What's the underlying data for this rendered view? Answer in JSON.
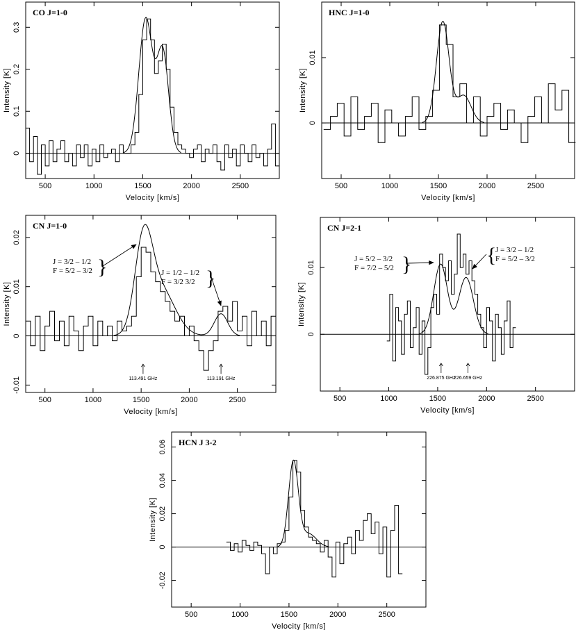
{
  "chart_data": [
    {
      "type": "line",
      "title": "CO J=1-0",
      "xlabel": "Velocity  [km/s]",
      "ylabel": "Intensity [K]",
      "xlim": [
        300,
        2900
      ],
      "ylim": [
        -0.06,
        0.36
      ],
      "xticks": [
        500,
        1000,
        1500,
        2000,
        2500
      ],
      "xtick_labels": [
        "500",
        "1000",
        "1500",
        "2000",
        "2500"
      ],
      "yticks": [
        0,
        0.1,
        0.2,
        0.3
      ],
      "ytick_labels": [
        "0",
        "0.1",
        "0.2",
        "0.3"
      ],
      "series": [
        {
          "style": "histogram",
          "x": [
            300,
            340,
            380,
            420,
            460,
            500,
            540,
            580,
            620,
            660,
            700,
            740,
            780,
            820,
            860,
            900,
            940,
            980,
            1020,
            1060,
            1100,
            1140,
            1180,
            1220,
            1260,
            1300,
            1340,
            1380,
            1420,
            1460,
            1500,
            1540,
            1580,
            1620,
            1660,
            1700,
            1740,
            1780,
            1820,
            1860,
            1900,
            1940,
            1980,
            2020,
            2060,
            2100,
            2140,
            2180,
            2220,
            2260,
            2300,
            2340,
            2380,
            2420,
            2460,
            2500,
            2540,
            2580,
            2620,
            2660,
            2700,
            2740,
            2780,
            2820,
            2860
          ],
          "y": [
            0.06,
            -0.02,
            0.04,
            -0.05,
            0.02,
            -0.03,
            0.03,
            -0.02,
            0.01,
            0.03,
            -0.02,
            0.0,
            -0.03,
            0.02,
            -0.01,
            0.02,
            -0.03,
            0.01,
            -0.02,
            0.02,
            -0.01,
            0.0,
            0.01,
            -0.02,
            0.02,
            0.0,
            0.0,
            0.02,
            0.05,
            0.14,
            0.27,
            0.32,
            0.27,
            0.19,
            0.22,
            0.26,
            0.2,
            0.11,
            0.05,
            0.02,
            0.01,
            0.0,
            -0.01,
            0.01,
            0.02,
            -0.02,
            0.01,
            0.0,
            0.02,
            -0.02,
            -0.04,
            0.02,
            -0.01,
            0.01,
            -0.03,
            0.02,
            0.0,
            -0.02,
            0.02,
            -0.01,
            0.0,
            -0.03,
            0.01,
            0.07,
            -0.03
          ]
        },
        {
          "style": "fit",
          "components": [
            {
              "amp": 0.32,
              "center": 1530,
              "sigma": 70
            },
            {
              "amp": 0.24,
              "center": 1705,
              "sigma": 60
            }
          ]
        }
      ]
    },
    {
      "type": "line",
      "title": "HNC J=1-0",
      "xlabel": "Velocity  [km/s]",
      "ylabel": "Intensity [K]",
      "xlim": [
        300,
        2900
      ],
      "ylim": [
        -0.0085,
        0.0185
      ],
      "xticks": [
        500,
        1000,
        1500,
        2000,
        2500
      ],
      "xtick_labels": [
        "500",
        "1000",
        "1500",
        "2000",
        "2500"
      ],
      "yticks": [
        0,
        0.01
      ],
      "ytick_labels": [
        "0",
        "0.01"
      ],
      "series": [
        {
          "style": "histogram",
          "x": [
            320,
            390,
            460,
            530,
            600,
            670,
            740,
            810,
            880,
            950,
            1020,
            1090,
            1160,
            1230,
            1300,
            1370,
            1440,
            1510,
            1580,
            1650,
            1720,
            1790,
            1860,
            1930,
            2000,
            2070,
            2140,
            2210,
            2280,
            2350,
            2420,
            2490,
            2560,
            2630,
            2700,
            2770,
            2840
          ],
          "y": [
            -0.001,
            0.001,
            0.003,
            -0.002,
            0.004,
            -0.001,
            0.001,
            0.003,
            -0.003,
            0.002,
            0.0,
            -0.002,
            0.001,
            0.004,
            -0.001,
            0.001,
            0.005,
            0.015,
            0.012,
            0.004,
            0.006,
            0.0,
            0.004,
            -0.002,
            0.001,
            0.003,
            -0.001,
            0.002,
            0.0,
            -0.003,
            0.001,
            0.004,
            0.0,
            0.006,
            0.002,
            0.005,
            -0.003
          ]
        },
        {
          "style": "fit",
          "components": [
            {
              "amp": 0.0155,
              "center": 1545,
              "sigma": 65
            },
            {
              "amp": 0.0042,
              "center": 1760,
              "sigma": 75
            }
          ]
        }
      ]
    },
    {
      "type": "line",
      "title": "CN J=1-0",
      "xlabel": "Velocity  [km/s]",
      "ylabel": "Intensity [K]",
      "xlim": [
        300,
        2900
      ],
      "ylim": [
        -0.0115,
        0.0245
      ],
      "xticks": [
        500,
        1000,
        1500,
        2000,
        2500
      ],
      "xtick_labels": [
        "500",
        "1000",
        "1500",
        "2000",
        "2500"
      ],
      "yticks": [
        -0.01,
        0,
        0.01,
        0.02
      ],
      "ytick_labels": [
        "-0.01",
        "0",
        "0.01",
        "0.02"
      ],
      "series": [
        {
          "style": "histogram",
          "x": [
            300,
            350,
            400,
            450,
            500,
            550,
            600,
            650,
            700,
            750,
            800,
            850,
            900,
            950,
            1000,
            1050,
            1100,
            1150,
            1200,
            1250,
            1300,
            1350,
            1400,
            1450,
            1500,
            1550,
            1600,
            1650,
            1700,
            1750,
            1800,
            1850,
            1900,
            1950,
            2000,
            2050,
            2100,
            2150,
            2200,
            2250,
            2300,
            2350,
            2400,
            2450,
            2500,
            2550,
            2600,
            2650,
            2700,
            2750,
            2800,
            2850
          ],
          "y": [
            0.003,
            -0.002,
            0.004,
            -0.003,
            0.002,
            0.005,
            -0.001,
            0.003,
            -0.002,
            0.004,
            0.001,
            -0.003,
            0.002,
            0.004,
            -0.002,
            0.003,
            0.0,
            0.002,
            -0.001,
            0.003,
            0.001,
            0.002,
            0.004,
            0.012,
            0.018,
            0.017,
            0.013,
            0.011,
            0.009,
            0.007,
            0.005,
            0.003,
            0.004,
            0.0,
            0.002,
            -0.001,
            -0.003,
            -0.007,
            -0.003,
            -0.001,
            0.005,
            0.006,
            0.003,
            0.007,
            0.001,
            0.004,
            -0.002,
            0.005,
            0.0,
            0.003,
            -0.002,
            0.004
          ]
        },
        {
          "style": "fit",
          "components": [
            {
              "amp": 0.0175,
              "center": 1525,
              "sigma": 90
            },
            {
              "amp": 0.0095,
              "center": 1700,
              "sigma": 150
            },
            {
              "amp": 0.0045,
              "center": 2330,
              "sigma": 70
            }
          ]
        }
      ],
      "annotations": [
        {
          "line1": "J = 3/2 – 1/2",
          "line2": "F = 5/2 – 3/2"
        },
        {
          "line1": "J = 1/2 – 1/2",
          "line2": "F = 3/2   3/2"
        }
      ],
      "markers": [
        {
          "x": 1520,
          "label": "113.491 GHz"
        },
        {
          "x": 2330,
          "label": "113.191 GHz"
        }
      ]
    },
    {
      "type": "line",
      "title": "CN J=2-1",
      "xlabel": "Velocity  [km/s]",
      "ylabel": "Intensity [K]",
      "xlim": [
        300,
        2900
      ],
      "ylim": [
        -0.0085,
        0.0175
      ],
      "xticks": [
        500,
        1000,
        1500,
        2000,
        2500
      ],
      "xtick_labels": [
        "500",
        "1000",
        "1500",
        "2000",
        "2500"
      ],
      "yticks": [
        0,
        0.01
      ],
      "ytick_labels": [
        "0",
        "0.01"
      ],
      "series": [
        {
          "style": "histogram",
          "x": [
            980,
            1010,
            1040,
            1070,
            1100,
            1130,
            1160,
            1190,
            1220,
            1250,
            1280,
            1310,
            1340,
            1370,
            1400,
            1430,
            1460,
            1490,
            1520,
            1550,
            1580,
            1610,
            1640,
            1670,
            1700,
            1730,
            1760,
            1790,
            1820,
            1850,
            1880,
            1910,
            1940,
            1970,
            2000,
            2030,
            2060,
            2090,
            2120,
            2150,
            2180,
            2210,
            2240,
            2270
          ],
          "y": [
            -0.001,
            0.006,
            -0.004,
            0.004,
            0.002,
            -0.003,
            0.003,
            0.005,
            -0.002,
            0.001,
            0.004,
            -0.003,
            0.002,
            -0.006,
            -0.002,
            0.004,
            0.006,
            0.003,
            0.012,
            0.01,
            0.008,
            0.011,
            0.006,
            0.009,
            0.015,
            0.01,
            0.012,
            0.009,
            0.011,
            0.008,
            0.006,
            0.003,
            0.001,
            -0.002,
            0.004,
            0.002,
            -0.004,
            0.003,
            0.001,
            -0.003,
            0.002,
            0.005,
            -0.002,
            0.001
          ]
        },
        {
          "style": "fit",
          "components": [
            {
              "amp": 0.0105,
              "center": 1530,
              "sigma": 70
            },
            {
              "amp": 0.0085,
              "center": 1790,
              "sigma": 75
            }
          ]
        }
      ],
      "annotations": [
        {
          "line1": "J = 5/2 – 3/2",
          "line2": "F = 7/2 – 5/2"
        },
        {
          "line1": "J = 3/2 – 1/2",
          "line2": "F = 5/2 – 3/2"
        }
      ],
      "markers": [
        {
          "x": 1535,
          "label": "226.875 GHz"
        },
        {
          "x": 1810,
          "label": "226.659 GHz"
        }
      ]
    },
    {
      "type": "line",
      "title": "HCN J  3-2",
      "xlabel": "Velocity  [km/s]",
      "ylabel": "Intensity [K]",
      "xlim": [
        300,
        2900
      ],
      "ylim": [
        -0.036,
        0.069
      ],
      "xticks": [
        500,
        1000,
        1500,
        2000,
        2500
      ],
      "xtick_labels": [
        "500",
        "1000",
        "1500",
        "2000",
        "2500"
      ],
      "yticks": [
        -0.02,
        0,
        0.02,
        0.04,
        0.06
      ],
      "ytick_labels": [
        "-0.02",
        "0",
        "0.02",
        "0.04",
        "0.06"
      ],
      "series": [
        {
          "style": "histogram",
          "x": [
            860,
            900,
            940,
            980,
            1020,
            1060,
            1100,
            1140,
            1180,
            1220,
            1260,
            1300,
            1340,
            1380,
            1420,
            1460,
            1500,
            1540,
            1580,
            1620,
            1660,
            1700,
            1740,
            1780,
            1820,
            1860,
            1900,
            1940,
            1980,
            2020,
            2060,
            2100,
            2140,
            2180,
            2220,
            2260,
            2300,
            2340,
            2380,
            2420,
            2460,
            2500,
            2540,
            2580,
            2620
          ],
          "y": [
            0.003,
            -0.002,
            0.002,
            -0.003,
            0.004,
            0.001,
            -0.002,
            0.003,
            0.001,
            -0.004,
            -0.016,
            0.0,
            -0.004,
            0.002,
            0.003,
            0.01,
            0.03,
            0.052,
            0.045,
            0.022,
            0.012,
            0.006,
            0.004,
            0.002,
            -0.003,
            0.004,
            -0.006,
            -0.018,
            0.003,
            -0.01,
            0.002,
            0.006,
            -0.004,
            0.01,
            0.004,
            0.016,
            0.02,
            0.008,
            0.015,
            -0.004,
            0.012,
            -0.018,
            0.01,
            0.025,
            -0.016
          ]
        },
        {
          "style": "fit",
          "components": [
            {
              "amp": 0.051,
              "center": 1545,
              "sigma": 50
            },
            {
              "amp": 0.008,
              "center": 1700,
              "sigma": 80
            }
          ]
        }
      ]
    }
  ]
}
